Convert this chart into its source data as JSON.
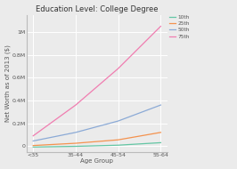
{
  "title": "Education Level: College Degree",
  "xlabel": "Age Group",
  "ylabel": "Net Worth as of 2013 ($)",
  "categories": [
    "<35",
    "35-44",
    "45-54",
    "55-64"
  ],
  "series": {
    "10th": [
      -8000,
      -2000,
      8000,
      30000
    ],
    "25th": [
      5000,
      25000,
      55000,
      120000
    ],
    "50th": [
      45000,
      120000,
      220000,
      360000
    ],
    "75th": [
      90000,
      360000,
      680000,
      1050000
    ]
  },
  "colors": {
    "10th": "#63c6a4",
    "25th": "#f4924e",
    "50th": "#8baad6",
    "75th": "#f07db0"
  },
  "ylim": [
    -50000,
    1150000
  ],
  "yticks": [
    0,
    200000,
    400000,
    600000,
    800000,
    1000000
  ],
  "ytick_labels": [
    "0",
    "0.2M",
    "0.4M",
    "0.6M",
    "0.8M",
    "1M"
  ],
  "background_color": "#ebebeb",
  "plot_bg_color": "#ebebeb",
  "grid_color": "#ffffff",
  "line_width": 0.9,
  "title_fontsize": 6.0,
  "label_fontsize": 5.0,
  "tick_fontsize": 4.5,
  "legend_fontsize": 4.2
}
